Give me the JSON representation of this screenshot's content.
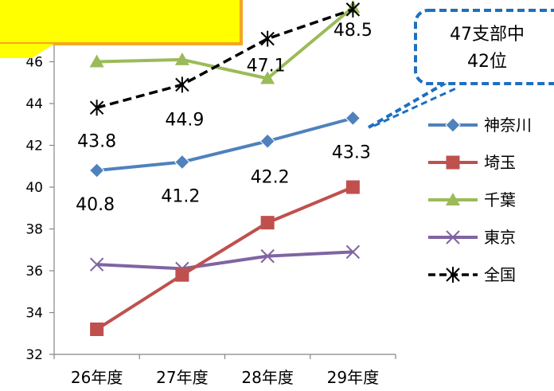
{
  "chart_data": {
    "type": "line",
    "categories": [
      "26年度",
      "27年度",
      "28年度",
      "29年度"
    ],
    "ylim": [
      32,
      48
    ],
    "yticks": [
      32,
      34,
      36,
      38,
      40,
      42,
      44,
      46
    ],
    "grid": false,
    "legend_position": "right",
    "series": [
      {
        "name": "神奈川",
        "values": [
          40.8,
          41.2,
          42.2,
          43.3
        ],
        "color": "#4F81BD",
        "marker": "diamond",
        "labels": [
          "40.8",
          "41.2",
          "42.2",
          "43.3"
        ]
      },
      {
        "name": "埼玉",
        "values": [
          33.2,
          35.8,
          38.3,
          40.0
        ],
        "color": "#C0504D",
        "marker": "square"
      },
      {
        "name": "千葉",
        "values": [
          46.0,
          46.1,
          45.2,
          48.6
        ],
        "color": "#9BBB59",
        "marker": "triangle"
      },
      {
        "name": "東京",
        "values": [
          36.3,
          36.1,
          36.7,
          36.9
        ],
        "color": "#8064A2",
        "marker": "x"
      },
      {
        "name": "全国",
        "values": [
          43.8,
          44.9,
          47.1,
          48.5
        ],
        "color": "#000000",
        "marker": "star",
        "dashed": true,
        "labels": [
          "43.8",
          "44.9",
          "47.1",
          "48.5"
        ]
      }
    ],
    "callout": {
      "line1": "47支部中",
      "line2": "42位",
      "border_color": "#1F6FBF"
    },
    "top_left_box": {
      "fill": "#FFFF00",
      "border": "#F5A623"
    }
  }
}
